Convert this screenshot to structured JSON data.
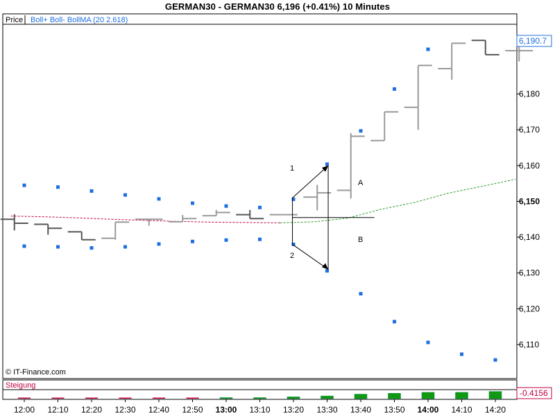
{
  "header": {
    "title": "GERMAN30 - GERMAN30     6,196  (+0.41%)     10 Minutes"
  },
  "legend": {
    "price_label": "Price",
    "indicator_label": "Boll+ Boll- BollMA (20 2.618)"
  },
  "copyright": "© IT-Finance.com",
  "lower_panel": {
    "label": "Steigung",
    "value_label": "-0.4156"
  },
  "annotations": {
    "label_1": "1",
    "label_2": "2",
    "label_A": "A",
    "label_B": "B"
  },
  "colors": {
    "bar_dark": "#555555",
    "bar_light": "#999999",
    "boll_band": "#1f6fe0",
    "ma_red": "#c0003c",
    "ma_green": "#2a9a2a",
    "slope_green": "#119911",
    "slope_red": "#c0003c",
    "price_tag": "#1f6fe0"
  },
  "chart_data": {
    "type": "ohlc",
    "title": "GERMAN30 - GERMAN30",
    "interval": "10 Minutes",
    "last_price_label": "6,190.7",
    "ylim": [
      6100.5,
      6199.3
    ],
    "y_ticks": [
      {
        "value": 6110,
        "label": "6,110",
        "bold": false
      },
      {
        "value": 6120,
        "label": "6,120",
        "bold": false
      },
      {
        "value": 6130,
        "label": "6,130",
        "bold": false
      },
      {
        "value": 6140,
        "label": "6,140",
        "bold": false
      },
      {
        "value": 6150,
        "label": "6,150",
        "bold": true
      },
      {
        "value": 6160,
        "label": "6,160",
        "bold": false
      },
      {
        "value": 6170,
        "label": "6,170",
        "bold": false
      },
      {
        "value": 6180,
        "label": "6,180",
        "bold": false
      }
    ],
    "x_ticks": [
      {
        "label": "12:00",
        "bold": false
      },
      {
        "label": "12:10",
        "bold": false
      },
      {
        "label": "12:20",
        "bold": false
      },
      {
        "label": "12:30",
        "bold": false
      },
      {
        "label": "12:40",
        "bold": false
      },
      {
        "label": "12:50",
        "bold": false
      },
      {
        "label": "13:00",
        "bold": true
      },
      {
        "label": "13:10",
        "bold": false
      },
      {
        "label": "13:20",
        "bold": false
      },
      {
        "label": "13:30",
        "bold": false
      },
      {
        "label": "13:40",
        "bold": false
      },
      {
        "label": "13:50",
        "bold": false
      },
      {
        "label": "14:00",
        "bold": true
      },
      {
        "label": "14:10",
        "bold": false
      },
      {
        "label": "14:20",
        "bold": false
      }
    ],
    "bars": [
      {
        "o": 6145.0,
        "h": 6146.4,
        "l": 6141.9,
        "c": 6143.9,
        "dark": true
      },
      {
        "o": 6143.6,
        "h": 6143.6,
        "l": 6140.7,
        "c": 6142.5,
        "dark": true
      },
      {
        "o": 6141.5,
        "h": 6141.5,
        "l": 6139.3,
        "c": 6139.3,
        "dark": true
      },
      {
        "o": 6139.7,
        "h": 6144.2,
        "l": 6139.3,
        "c": 6144.2,
        "dark": false
      },
      {
        "o": 6145.0,
        "h": 6145.0,
        "l": 6143.2,
        "c": 6145.0,
        "dark": false
      },
      {
        "o": 6144.3,
        "h": 6146.2,
        "l": 6144.3,
        "c": 6145.2,
        "dark": false
      },
      {
        "o": 6146.0,
        "h": 6147.6,
        "l": 6146.0,
        "c": 6146.9,
        "dark": false
      },
      {
        "o": 6146.3,
        "h": 6147.6,
        "l": 6145.2,
        "c": 6145.2,
        "dark": true
      },
      {
        "o": 6146.3,
        "h": 6146.3,
        "l": 6146.3,
        "c": 6146.3,
        "dark": false
      },
      {
        "o": 6151.2,
        "h": 6154.6,
        "l": 6147.5,
        "c": 6152.4,
        "dark": false
      },
      {
        "o": 6153.1,
        "h": 6169.1,
        "l": 6150.8,
        "c": 6168.2,
        "dark": false
      },
      {
        "o": 6167.0,
        "h": 6175.0,
        "l": 6167.0,
        "c": 6175.0,
        "dark": false
      },
      {
        "o": 6176.3,
        "h": 6188.0,
        "l": 6170.0,
        "c": 6188.0,
        "dark": false
      },
      {
        "o": 6187.1,
        "h": 6194.2,
        "l": 6184.0,
        "c": 6194.2,
        "dark": false
      },
      {
        "o": 6195.0,
        "h": 6195.0,
        "l": 6191.0,
        "c": 6191.0,
        "dark": true
      },
      {
        "o": 6192.1,
        "h": 6193.4,
        "l": 6189.1,
        "c": 6192.1,
        "dark": false
      }
    ],
    "boll_upper": [
      6154.5,
      6154.0,
      6152.9,
      6151.8,
      6150.7,
      6149.5,
      6148.7,
      6148.3,
      6150.6,
      6160.4,
      6169.7,
      6181.4,
      6192.5
    ],
    "boll_lower": [
      6137.5,
      6137.3,
      6137.0,
      6137.3,
      6138.1,
      6138.8,
      6139.2,
      6139.4,
      6138.0,
      6130.6,
      6124.2,
      6116.4,
      6110.6,
      6107.3,
      6105.7
    ],
    "ma_red": [
      6145.9,
      6145.7,
      6145.4,
      6145.0,
      6144.7,
      6144.4,
      6144.2,
      6144.1,
      6144.0
    ],
    "ma_green": [
      6144.0,
      6144.3,
      6145.3,
      6147.8,
      6149.7,
      6152.3,
      6154.2,
      6156.2
    ],
    "arrows": {
      "base_x_index": 8.3,
      "top": 6160.0,
      "bottom": 6131.0,
      "mid": 6145.5
    },
    "slope": {
      "ylabel": "Steigung",
      "value_label": "-0.4156",
      "values": [
        -0.05,
        -0.05,
        -0.1,
        -0.05,
        -0.05,
        -0.05,
        0.0,
        0.0,
        0.1,
        0.15,
        0.25,
        0.3,
        0.35,
        0.35,
        0.4,
        0.4
      ],
      "range": [
        -0.2,
        0.5
      ]
    }
  }
}
